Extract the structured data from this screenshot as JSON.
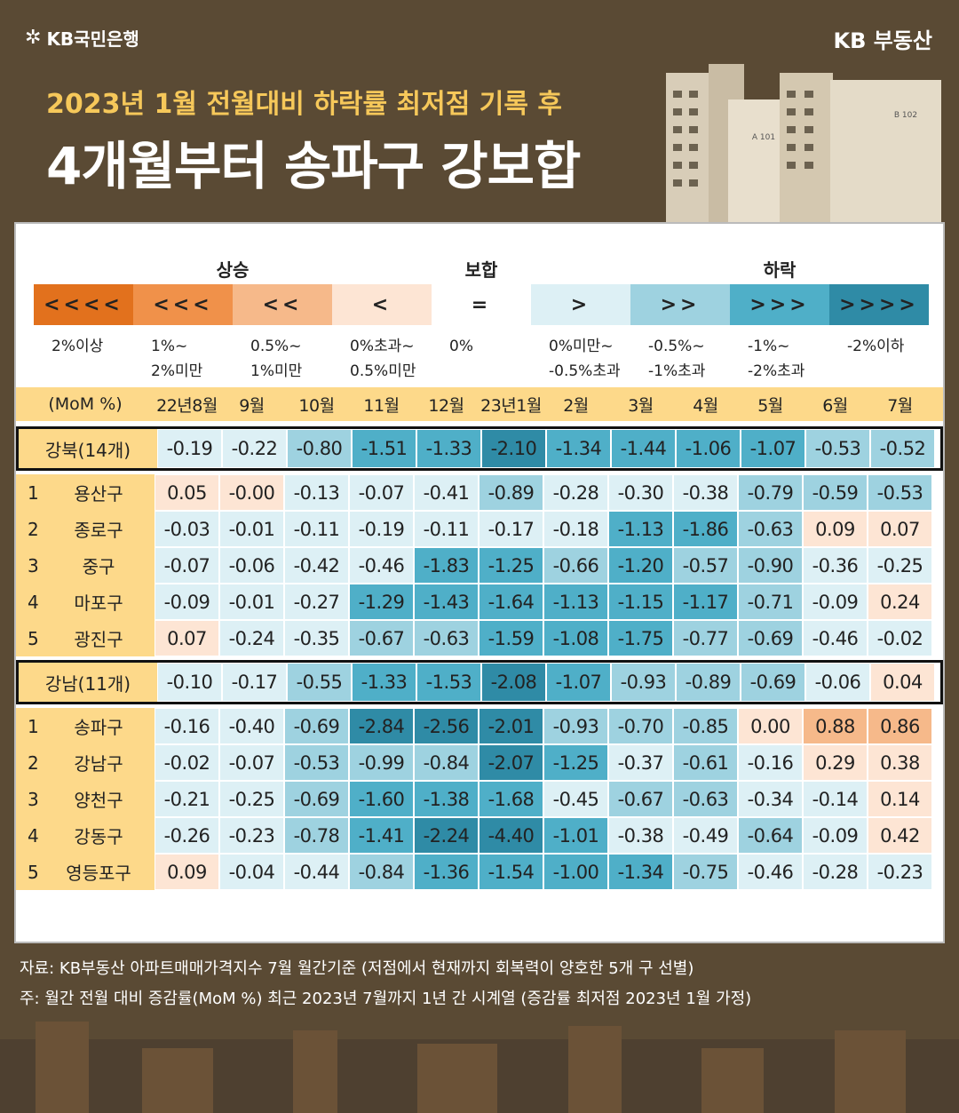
{
  "brand_left": "KB국민은행",
  "brand_right": "KB 부동산",
  "subtitle": "2023년 1월 전월대비 하락률 최저점 기록 후",
  "title": "4개월부터 송파구 강보합",
  "buildings": [
    "A 101",
    "B 102"
  ],
  "legend": {
    "heads": {
      "up": "상승",
      "flat": "보합",
      "down": "하락"
    },
    "boxes": [
      {
        "symbol": "<<<<",
        "label": "2%이상",
        "label2": "",
        "color": "#e2711d"
      },
      {
        "symbol": "<<<",
        "label": "1%~",
        "label2": "2%미만",
        "color": "#f0914a"
      },
      {
        "symbol": "<<",
        "label": "0.5%~",
        "label2": "1%미만",
        "color": "#f6b98a"
      },
      {
        "symbol": "<",
        "label": "0%초과~",
        "label2": "0.5%미만",
        "color": "#fde5d4"
      },
      {
        "symbol": "=",
        "label": "0%",
        "label2": "",
        "color": "#ffffff"
      },
      {
        "symbol": ">",
        "label": "0%미만~",
        "label2": "-0.5%초과",
        "color": "#ddf0f5"
      },
      {
        "symbol": ">>",
        "label": "-0.5%~",
        "label2": "-1%초과",
        "color": "#9ed2e0"
      },
      {
        "symbol": ">>>",
        "label": "-1%~",
        "label2": "-2%초과",
        "color": "#4fafc8"
      },
      {
        "symbol": ">>>>",
        "label": "-2%이하",
        "label2": "",
        "color": "#2f8ba6"
      }
    ]
  },
  "table": {
    "header_label": "(MoM %)",
    "months": [
      "22년8월",
      "9월",
      "10월",
      "11월",
      "12월",
      "23년1월",
      "2월",
      "3월",
      "4월",
      "5월",
      "6월",
      "7월"
    ],
    "rows": [
      {
        "group": true,
        "num": "",
        "name": "강북(14개)",
        "values": [
          "-0.19",
          "-0.22",
          "-0.80",
          "-1.51",
          "-1.33",
          "-2.10",
          "-1.34",
          "-1.44",
          "-1.06",
          "-1.07",
          "-0.53",
          "-0.52"
        ]
      },
      {
        "group": false,
        "num": "1",
        "name": "용산구",
        "values": [
          "0.05",
          "-0.00",
          "-0.13",
          "-0.07",
          "-0.41",
          "-0.89",
          "-0.28",
          "-0.30",
          "-0.38",
          "-0.79",
          "-0.59",
          "-0.53"
        ]
      },
      {
        "group": false,
        "num": "2",
        "name": "종로구",
        "values": [
          "-0.03",
          "-0.01",
          "-0.11",
          "-0.19",
          "-0.11",
          "-0.17",
          "-0.18",
          "-1.13",
          "-1.86",
          "-0.63",
          "0.09",
          "0.07"
        ]
      },
      {
        "group": false,
        "num": "3",
        "name": "중구",
        "values": [
          "-0.07",
          "-0.06",
          "-0.42",
          "-0.46",
          "-1.83",
          "-1.25",
          "-0.66",
          "-1.20",
          "-0.57",
          "-0.90",
          "-0.36",
          "-0.25"
        ]
      },
      {
        "group": false,
        "num": "4",
        "name": "마포구",
        "values": [
          "-0.09",
          "-0.01",
          "-0.27",
          "-1.29",
          "-1.43",
          "-1.64",
          "-1.13",
          "-1.15",
          "-1.17",
          "-0.71",
          "-0.09",
          "0.24"
        ]
      },
      {
        "group": false,
        "num": "5",
        "name": "광진구",
        "values": [
          "0.07",
          "-0.24",
          "-0.35",
          "-0.67",
          "-0.63",
          "-1.59",
          "-1.08",
          "-1.75",
          "-0.77",
          "-0.69",
          "-0.46",
          "-0.02"
        ]
      },
      {
        "group": true,
        "num": "",
        "name": "강남(11개)",
        "values": [
          "-0.10",
          "-0.17",
          "-0.55",
          "-1.33",
          "-1.53",
          "-2.08",
          "-1.07",
          "-0.93",
          "-0.89",
          "-0.69",
          "-0.06",
          "0.04"
        ]
      },
      {
        "group": false,
        "num": "1",
        "name": "송파구",
        "values": [
          "-0.16",
          "-0.40",
          "-0.69",
          "-2.84",
          "-2.56",
          "-2.01",
          "-0.93",
          "-0.70",
          "-0.85",
          "0.00",
          "0.88",
          "0.86"
        ]
      },
      {
        "group": false,
        "num": "2",
        "name": "강남구",
        "values": [
          "-0.02",
          "-0.07",
          "-0.53",
          "-0.99",
          "-0.84",
          "-2.07",
          "-1.25",
          "-0.37",
          "-0.61",
          "-0.16",
          "0.29",
          "0.38"
        ]
      },
      {
        "group": false,
        "num": "3",
        "name": "양천구",
        "values": [
          "-0.21",
          "-0.25",
          "-0.69",
          "-1.60",
          "-1.38",
          "-1.68",
          "-0.45",
          "-0.67",
          "-0.63",
          "-0.34",
          "-0.14",
          "0.14"
        ]
      },
      {
        "group": false,
        "num": "4",
        "name": "강동구",
        "values": [
          "-0.26",
          "-0.23",
          "-0.78",
          "-1.41",
          "-2.24",
          "-4.40",
          "-1.01",
          "-0.38",
          "-0.49",
          "-0.64",
          "-0.09",
          "0.42"
        ]
      },
      {
        "group": false,
        "num": "5",
        "name": "영등포구",
        "values": [
          "0.09",
          "-0.04",
          "-0.44",
          "-0.84",
          "-1.36",
          "-1.54",
          "-1.00",
          "-1.34",
          "-0.75",
          "-0.46",
          "-0.28",
          "-0.23"
        ]
      }
    ]
  },
  "footnote1": "자료: KB부동산 아파트매매가격지수 7월 월간기준 (저점에서 현재까지 회복력이 양호한 5개 구 선별)",
  "footnote2": "주: 월간 전월 대비 증감률(MoM %) 최근 2023년 7월까지 1년 간 시계열 (증감률 최저점 2023년 1월 가정)"
}
